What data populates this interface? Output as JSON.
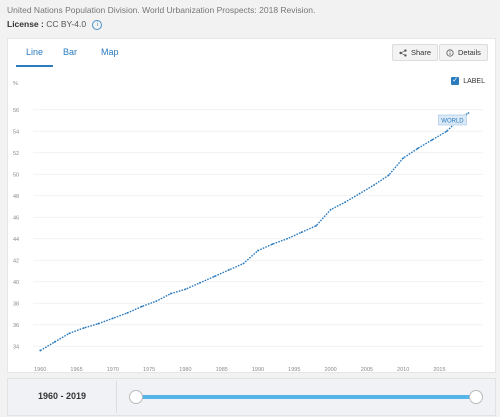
{
  "source": "United Nations Population Division. World Urbanization Prospects: 2018 Revision.",
  "license": {
    "label": "License :",
    "value": "CC BY-4.0"
  },
  "tabs": [
    {
      "label": "Line"
    },
    {
      "label": "Bar"
    },
    {
      "label": "Map"
    }
  ],
  "buttons": {
    "share": "Share",
    "details": "Details"
  },
  "label_toggle": "LABEL",
  "range_text": "1960 - 2019",
  "chart_data": {
    "type": "line",
    "ylabel": "%",
    "ylim": [
      33,
      57
    ],
    "y_ticks": [
      34,
      36,
      38,
      40,
      42,
      44,
      46,
      48,
      50,
      52,
      54,
      56
    ],
    "x_ticks": [
      1960,
      1965,
      1970,
      1975,
      1980,
      1985,
      1990,
      1995,
      2000,
      2005,
      2010,
      2015
    ],
    "xlim": [
      1959,
      2021
    ],
    "series": [
      {
        "name": "WORLD",
        "x": [
          1960,
          1962,
          1964,
          1966,
          1968,
          1970,
          1972,
          1974,
          1976,
          1978,
          1980,
          1982,
          1984,
          1986,
          1988,
          1990,
          1992,
          1994,
          1996,
          1998,
          2000,
          2002,
          2004,
          2006,
          2008,
          2010,
          2012,
          2014,
          2016,
          2018,
          2019
        ],
        "values": [
          33.6,
          34.4,
          35.2,
          35.7,
          36.1,
          36.6,
          37.1,
          37.7,
          38.2,
          38.9,
          39.3,
          39.9,
          40.5,
          41.1,
          41.7,
          42.9,
          43.5,
          44.0,
          44.6,
          45.2,
          46.7,
          47.4,
          48.2,
          49.0,
          49.9,
          51.5,
          52.4,
          53.2,
          54.0,
          55.3,
          55.7
        ]
      }
    ],
    "legend": "inline-end-label",
    "grid": true
  }
}
